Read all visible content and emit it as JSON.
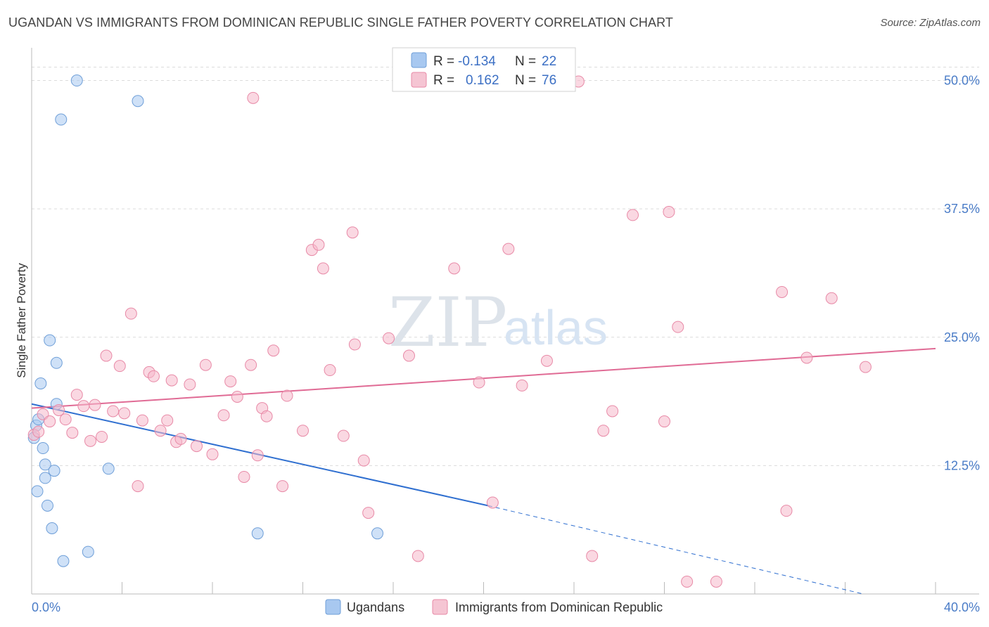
{
  "header": {
    "title": "UGANDAN VS IMMIGRANTS FROM DOMINICAN REPUBLIC SINGLE FATHER POVERTY CORRELATION CHART",
    "source": "Source: ZipAtlas.com"
  },
  "watermark": {
    "zip": "ZIP",
    "atlas": "atlas"
  },
  "legend_box": {
    "rows": [
      {
        "r_label": "R =",
        "r_value": "-0.134",
        "n_label": "N =",
        "n_value": "22",
        "color": "#a8c8f0"
      },
      {
        "r_label": "R =",
        "r_value": "0.162",
        "n_label": "N =",
        "n_value": "76",
        "color": "#f5b8cb"
      }
    ]
  },
  "bottom_legend": [
    {
      "label": "Ugandans",
      "color": "#a8c8f0"
    },
    {
      "label": "Immigrants from Dominican Republic",
      "color": "#f5b8cb"
    }
  ],
  "chart_data": {
    "type": "scatter",
    "title": "UGANDAN VS IMMIGRANTS FROM DOMINICAN REPUBLIC SINGLE FATHER POVERTY CORRELATION CHART",
    "ylabel": "Single Father Poverty",
    "xlabel": "",
    "xlim": [
      0,
      40
    ],
    "ylim": [
      0,
      52.5
    ],
    "x_tick_labels": [
      "0.0%",
      "40.0%"
    ],
    "y_ticks": [
      12.5,
      25.0,
      37.5,
      50.0
    ],
    "y_tick_labels": [
      "12.5%",
      "25.0%",
      "37.5%",
      "50.0%"
    ],
    "grid": true,
    "series": [
      {
        "name": "Ugandans",
        "color": "#a8c8f0",
        "stroke": "#6f9fd8",
        "trend_color": "#2f6fd0",
        "trend": {
          "x0": 0,
          "y0": 18.5,
          "x1": 20.2,
          "y1": 8.6,
          "dash_to_x": 36.8,
          "dash_to_y": 0
        },
        "points": [
          [
            0.2,
            16.4
          ],
          [
            0.3,
            17.0
          ],
          [
            0.4,
            20.5
          ],
          [
            0.5,
            14.2
          ],
          [
            0.6,
            12.6
          ],
          [
            0.6,
            11.3
          ],
          [
            0.7,
            8.6
          ],
          [
            0.8,
            24.7
          ],
          [
            0.9,
            6.4
          ],
          [
            1.0,
            12.0
          ],
          [
            1.1,
            18.5
          ],
          [
            1.1,
            22.5
          ],
          [
            1.3,
            46.2
          ],
          [
            1.4,
            3.2
          ],
          [
            2.0,
            50.0
          ],
          [
            2.5,
            4.1
          ],
          [
            3.4,
            12.2
          ],
          [
            4.7,
            48.0
          ],
          [
            10.0,
            5.9
          ],
          [
            15.3,
            5.9
          ],
          [
            0.25,
            10.0
          ],
          [
            0.1,
            15.2
          ]
        ]
      },
      {
        "name": "Immigrants from Dominican Republic",
        "color": "#f5b8cb",
        "stroke": "#e88aa7",
        "trend_color": "#e06b95",
        "trend": {
          "x0": 0,
          "y0": 18.1,
          "x1": 40,
          "y1": 23.9
        },
        "points": [
          [
            0.1,
            15.5
          ],
          [
            0.3,
            15.8
          ],
          [
            0.5,
            17.5
          ],
          [
            0.8,
            16.8
          ],
          [
            1.2,
            17.9
          ],
          [
            1.5,
            17.0
          ],
          [
            1.8,
            15.7
          ],
          [
            2.0,
            19.4
          ],
          [
            2.3,
            18.3
          ],
          [
            2.6,
            14.9
          ],
          [
            2.8,
            18.4
          ],
          [
            3.1,
            15.3
          ],
          [
            3.3,
            23.2
          ],
          [
            3.6,
            17.8
          ],
          [
            3.9,
            22.2
          ],
          [
            4.1,
            17.6
          ],
          [
            4.4,
            27.3
          ],
          [
            4.7,
            10.5
          ],
          [
            4.9,
            16.9
          ],
          [
            5.2,
            21.6
          ],
          [
            5.4,
            21.2
          ],
          [
            5.7,
            15.9
          ],
          [
            6.0,
            16.9
          ],
          [
            6.2,
            20.8
          ],
          [
            6.4,
            14.8
          ],
          [
            6.6,
            15.1
          ],
          [
            7.0,
            20.4
          ],
          [
            7.3,
            14.4
          ],
          [
            7.7,
            22.3
          ],
          [
            8.0,
            13.6
          ],
          [
            8.5,
            17.4
          ],
          [
            8.8,
            20.7
          ],
          [
            9.1,
            19.2
          ],
          [
            9.4,
            11.4
          ],
          [
            9.7,
            22.3
          ],
          [
            10.0,
            13.5
          ],
          [
            10.2,
            18.1
          ],
          [
            10.4,
            17.3
          ],
          [
            10.7,
            23.7
          ],
          [
            11.1,
            10.5
          ],
          [
            11.3,
            19.3
          ],
          [
            12.0,
            15.9
          ],
          [
            12.4,
            33.5
          ],
          [
            12.7,
            34.0
          ],
          [
            12.9,
            31.7
          ],
          [
            13.2,
            21.8
          ],
          [
            13.8,
            15.4
          ],
          [
            14.2,
            35.2
          ],
          [
            14.3,
            24.3
          ],
          [
            14.7,
            13.0
          ],
          [
            14.9,
            7.9
          ],
          [
            15.8,
            24.9
          ],
          [
            16.7,
            23.2
          ],
          [
            17.1,
            3.7
          ],
          [
            18.7,
            31.7
          ],
          [
            19.8,
            20.6
          ],
          [
            20.4,
            8.9
          ],
          [
            21.1,
            33.6
          ],
          [
            21.7,
            20.3
          ],
          [
            22.8,
            22.7
          ],
          [
            24.2,
            49.9
          ],
          [
            24.8,
            3.7
          ],
          [
            25.3,
            15.9
          ],
          [
            25.7,
            17.8
          ],
          [
            26.6,
            36.9
          ],
          [
            28.0,
            16.8
          ],
          [
            28.2,
            37.2
          ],
          [
            28.6,
            26.0
          ],
          [
            29.0,
            1.2
          ],
          [
            30.3,
            1.2
          ],
          [
            33.2,
            29.4
          ],
          [
            33.4,
            8.1
          ],
          [
            34.3,
            23.0
          ],
          [
            35.4,
            28.8
          ],
          [
            36.9,
            22.1
          ],
          [
            9.8,
            48.3
          ]
        ]
      }
    ]
  }
}
